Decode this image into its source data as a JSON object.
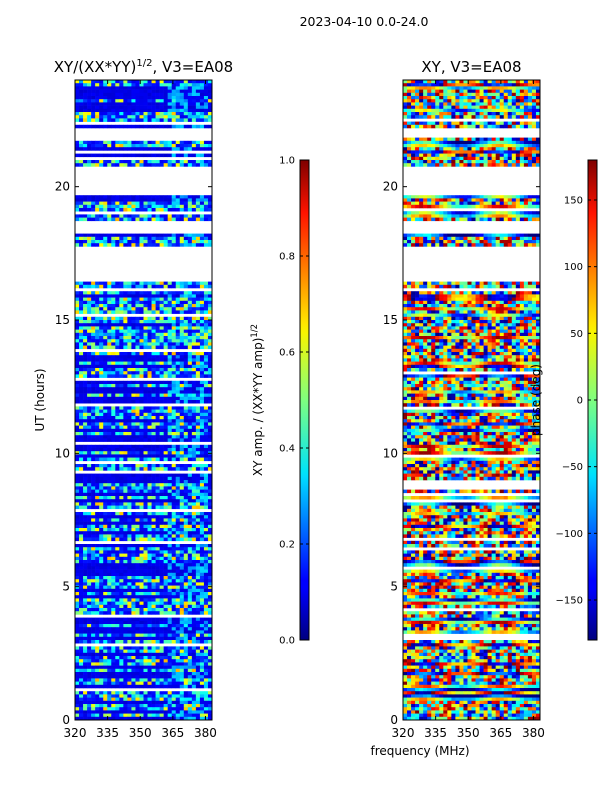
{
  "suptitle": "2023-04-10 0.0-24.0",
  "chart_data": [
    {
      "type": "heatmap",
      "title": "XY/(XX*YY)",
      "title_exponent": "1/2",
      "title_suffix": ", V3=EA08",
      "ylabel": "UT (hours)",
      "xlim": [
        320,
        383
      ],
      "ylim": [
        0,
        24
      ],
      "xticks": [
        "320",
        "335",
        "350",
        "365",
        "380"
      ],
      "xtick_values": [
        320,
        335,
        350,
        365,
        380
      ],
      "yticks": [
        "0",
        "5",
        "10",
        "15",
        "20"
      ],
      "ytick_values": [
        0,
        5,
        10,
        15,
        20
      ],
      "gaps_hours": [
        [
          22.2,
          21.8
        ],
        [
          20.7,
          19.7
        ],
        [
          18.7,
          18.3
        ],
        [
          17.8,
          16.5
        ]
      ],
      "colorbar": {
        "label": "XY amp. / (XX*YY amp)",
        "label_exponent": "1/2",
        "range": [
          0.0,
          1.0
        ],
        "ticks": [
          "0.0",
          "0.2",
          "0.4",
          "0.6",
          "0.8",
          "1.0"
        ],
        "tick_values": [
          0.0,
          0.2,
          0.4,
          0.6,
          0.8,
          1.0
        ]
      }
    },
    {
      "type": "heatmap",
      "title": "XY, V3=EA08",
      "ylabel": "phase (deg)",
      "xlabel": "frequency (MHz)",
      "xlim": [
        320,
        383
      ],
      "ylim": [
        0,
        24
      ],
      "xticks": [
        "320",
        "335",
        "350",
        "365",
        "380"
      ],
      "xtick_values": [
        320,
        335,
        350,
        365,
        380
      ],
      "yticks": [
        "0",
        "5",
        "10",
        "15",
        "20"
      ],
      "ytick_values": [
        0,
        5,
        10,
        15,
        20
      ],
      "gaps_hours": [
        [
          22.2,
          21.8
        ],
        [
          20.7,
          19.7
        ],
        [
          18.7,
          18.3
        ],
        [
          17.8,
          16.5
        ]
      ],
      "colorbar": {
        "range": [
          -180,
          180
        ],
        "ticks": [
          "−150",
          "−100",
          "−50",
          "0",
          "50",
          "100",
          "150"
        ],
        "tick_values": [
          -150,
          -100,
          -50,
          0,
          50,
          100,
          150
        ]
      }
    }
  ]
}
